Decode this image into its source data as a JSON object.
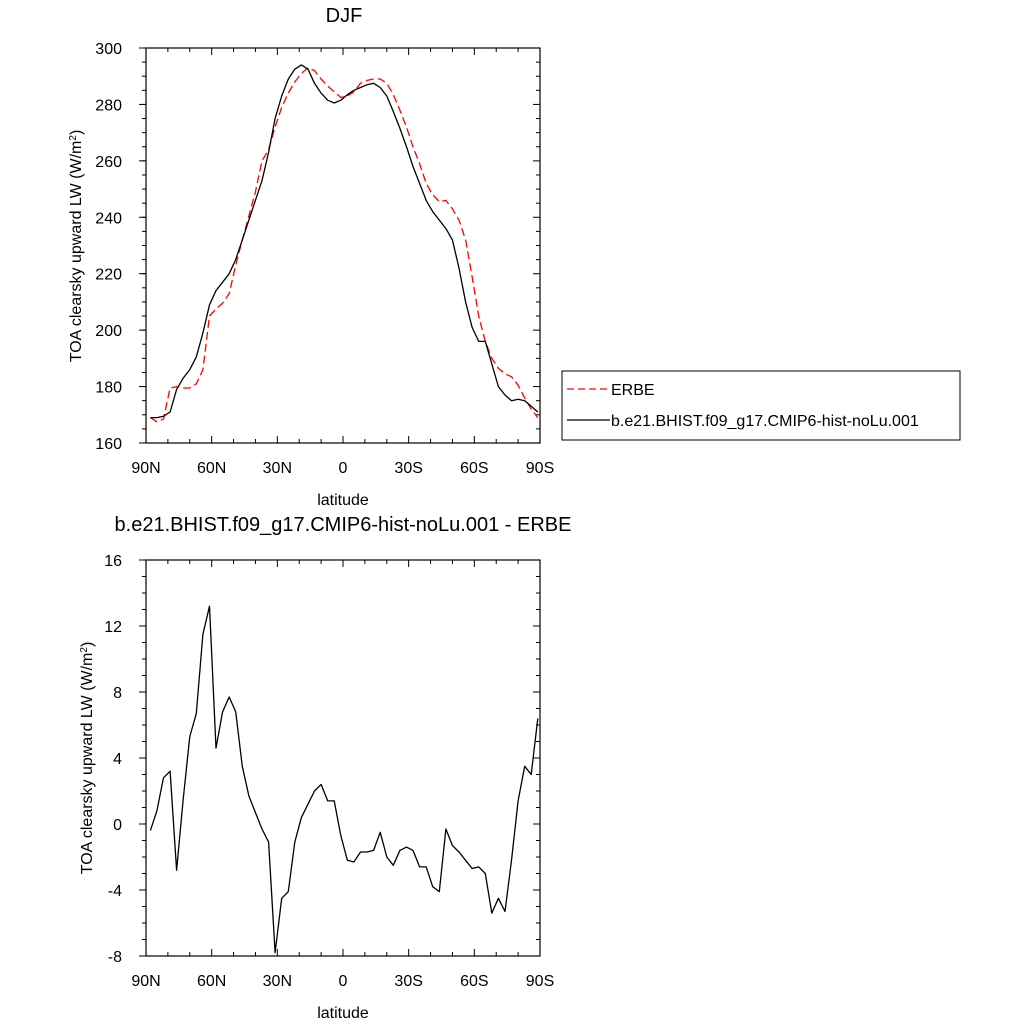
{
  "chart_data": [
    {
      "type": "line",
      "title": "DJF",
      "xlabel": "latitude",
      "ylabel_main": "TOA clearsky upward LW (W/m",
      "ylabel_sup": "2",
      "ylabel_close": ")",
      "xlim": [
        90,
        -90
      ],
      "ylim": [
        160,
        300
      ],
      "xticks": [
        {
          "value": 90,
          "label": "90N"
        },
        {
          "value": 60,
          "label": "60N"
        },
        {
          "value": 30,
          "label": "30N"
        },
        {
          "value": 0,
          "label": "0"
        },
        {
          "value": -30,
          "label": "30S"
        },
        {
          "value": -60,
          "label": "60S"
        },
        {
          "value": -90,
          "label": "90S"
        }
      ],
      "yticks": [
        {
          "value": 300,
          "label": "300"
        },
        {
          "value": 280,
          "label": "280"
        },
        {
          "value": 260,
          "label": "260"
        },
        {
          "value": 240,
          "label": "240"
        },
        {
          "value": 220,
          "label": "220"
        },
        {
          "value": 200,
          "label": "200"
        },
        {
          "value": 180,
          "label": "180"
        },
        {
          "value": 160,
          "label": "160"
        }
      ],
      "legend_position": "right",
      "series": [
        {
          "name": "ERBE",
          "color": "#ff0000",
          "dash": "dashed",
          "x": [
            88,
            85,
            82,
            79,
            76,
            73,
            70,
            67,
            64,
            61,
            58,
            55,
            52,
            49,
            46,
            43,
            40,
            37,
            34,
            31,
            28,
            25,
            22,
            19,
            16,
            13,
            10,
            7,
            4,
            1,
            -2,
            -5,
            -8,
            -11,
            -14,
            -17,
            -20,
            -23,
            -26,
            -29,
            -32,
            -35,
            -38,
            -41,
            -44,
            -47,
            -50,
            -53,
            -56,
            -59,
            -62,
            -65,
            -68,
            -71,
            -74,
            -77,
            -80,
            -83,
            -86,
            -89
          ],
          "y": [
            169,
            167.5,
            168.5,
            179.5,
            180,
            179.5,
            179.5,
            181,
            186,
            205,
            207.5,
            209.5,
            213,
            223,
            232,
            240.5,
            249,
            260,
            264,
            272,
            279,
            284,
            288,
            291,
            293,
            292,
            289,
            286.5,
            284.5,
            282.5,
            283,
            284.5,
            287.5,
            288.5,
            289,
            289,
            287.5,
            283.5,
            278,
            272,
            265,
            259,
            252,
            248,
            245.5,
            246,
            243,
            239,
            232,
            219,
            205,
            196,
            190,
            186.5,
            184.5,
            183.5,
            180.5,
            176,
            172,
            169
          ]
        },
        {
          "name": "b.e21.BHIST.f09_g17.CMIP6-hist-noLu.001",
          "color": "#000000",
          "dash": "solid",
          "x": [
            88,
            85,
            82,
            79,
            76,
            73,
            70,
            67,
            64,
            61,
            58,
            55,
            52,
            49,
            46,
            43,
            40,
            37,
            34,
            31,
            28,
            25,
            22,
            19,
            16,
            13,
            10,
            7,
            4,
            1,
            -2,
            -5,
            -8,
            -11,
            -14,
            -17,
            -20,
            -23,
            -26,
            -29,
            -32,
            -35,
            -38,
            -41,
            -44,
            -47,
            -50,
            -53,
            -56,
            -59,
            -62,
            -65,
            -68,
            -71,
            -74,
            -77,
            -80,
            -83,
            -86,
            -89
          ],
          "y": [
            169,
            169,
            169.5,
            171,
            179,
            183,
            186,
            190.5,
            199,
            209,
            214,
            217,
            220,
            225,
            232,
            239,
            246,
            253,
            263,
            275,
            283,
            289,
            292.5,
            294,
            292.5,
            287.5,
            284,
            281.5,
            280.5,
            281.5,
            283.5,
            285,
            286,
            287,
            287.5,
            286,
            283,
            277.5,
            271.5,
            265,
            258,
            252,
            246,
            242,
            239,
            236,
            232,
            222,
            210,
            201,
            196,
            196,
            188,
            180,
            177,
            175,
            175.5,
            175,
            173,
            171
          ]
        }
      ]
    },
    {
      "type": "line",
      "title": "b.e21.BHIST.f09_g17.CMIP6-hist-noLu.001 - ERBE",
      "xlabel": "latitude",
      "ylabel_main": "TOA clearsky upward LW (W/m",
      "ylabel_sup": "2",
      "ylabel_close": ")",
      "xlim": [
        90,
        -90
      ],
      "ylim": [
        -8,
        16
      ],
      "xticks": [
        {
          "value": 90,
          "label": "90N"
        },
        {
          "value": 60,
          "label": "60N"
        },
        {
          "value": 30,
          "label": "30N"
        },
        {
          "value": 0,
          "label": "0"
        },
        {
          "value": -30,
          "label": "30S"
        },
        {
          "value": -60,
          "label": "60S"
        },
        {
          "value": -90,
          "label": "90S"
        }
      ],
      "yticks": [
        {
          "value": 16,
          "label": "16"
        },
        {
          "value": 12,
          "label": "12"
        },
        {
          "value": 8,
          "label": "8"
        },
        {
          "value": 4,
          "label": "4"
        },
        {
          "value": 0,
          "label": "0"
        },
        {
          "value": -4,
          "label": "-4"
        },
        {
          "value": -8,
          "label": "-8"
        }
      ],
      "series": [
        {
          "color": "#000000",
          "dash": "solid",
          "x": [
            88,
            85,
            82,
            79,
            76,
            73,
            70,
            67,
            64,
            61,
            58,
            55,
            52,
            49,
            46,
            43,
            40,
            37,
            34,
            31,
            28,
            25,
            22,
            19,
            16,
            13,
            10,
            7,
            4,
            1,
            -2,
            -5,
            -8,
            -11,
            -14,
            -17,
            -20,
            -23,
            -26,
            -29,
            -32,
            -35,
            -38,
            -41,
            -44,
            -47,
            -50,
            -53,
            -56,
            -59,
            -62,
            -65,
            -68,
            -71,
            -74,
            -77,
            -80,
            -83,
            -86,
            -89
          ],
          "y": [
            -0.4,
            0.8,
            2.8,
            3.2,
            -2.8,
            1.5,
            5.3,
            6.7,
            11.5,
            13.2,
            4.6,
            6.8,
            7.7,
            6.8,
            3.5,
            1.7,
            0.7,
            -0.3,
            -1.1,
            -7.8,
            -4.5,
            -4.1,
            -1.1,
            0.4,
            1.2,
            2,
            2.4,
            1.4,
            1.4,
            -0.7,
            -2.2,
            -2.3,
            -1.7,
            -1.7,
            -1.6,
            -0.5,
            -2,
            -2.5,
            -1.6,
            -1.4,
            -1.6,
            -2.6,
            -2.6,
            -3.8,
            -4.1,
            -0.3,
            -1.3,
            -1.7,
            -2.2,
            -2.7,
            -2.6,
            -3,
            -5.4,
            -4.5,
            -5.3,
            -2.2,
            1.4,
            3.5,
            3,
            6.4
          ]
        }
      ]
    }
  ]
}
